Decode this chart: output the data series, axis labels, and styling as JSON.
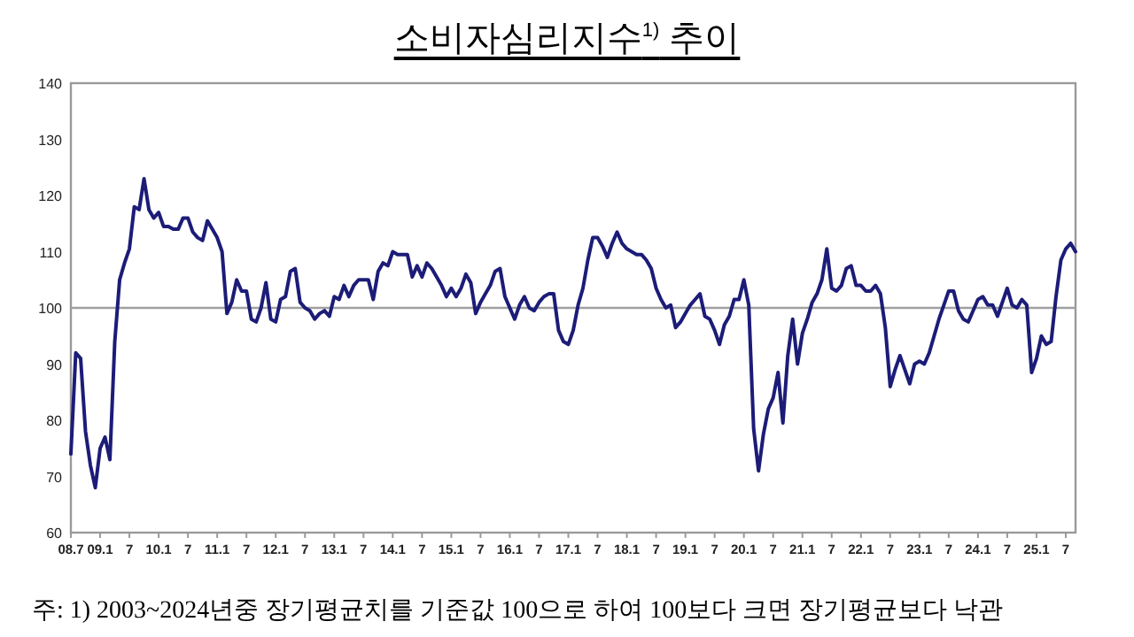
{
  "chart_data": {
    "type": "line",
    "title": "소비자심리지수$^{1)}$ 추이",
    "x": [
      "2008-07",
      "2008-08",
      "2008-09",
      "2008-10",
      "2008-11",
      "2008-12",
      "2009-01",
      "2009-02",
      "2009-03",
      "2009-04",
      "2009-05",
      "2009-06",
      "2009-07",
      "2009-08",
      "2009-09",
      "2009-10",
      "2009-11",
      "2009-12",
      "2010-01",
      "2010-02",
      "2010-03",
      "2010-04",
      "2010-05",
      "2010-06",
      "2010-07",
      "2010-08",
      "2010-09",
      "2010-10",
      "2010-11",
      "2010-12",
      "2011-01",
      "2011-02",
      "2011-03",
      "2011-04",
      "2011-05",
      "2011-06",
      "2011-07",
      "2011-08",
      "2011-09",
      "2011-10",
      "2011-11",
      "2011-12",
      "2012-01",
      "2012-02",
      "2012-03",
      "2012-04",
      "2012-05",
      "2012-06",
      "2012-07",
      "2012-08",
      "2012-09",
      "2012-10",
      "2012-11",
      "2012-12",
      "2013-01",
      "2013-02",
      "2013-03",
      "2013-04",
      "2013-05",
      "2013-06",
      "2013-07",
      "2013-08",
      "2013-09",
      "2013-10",
      "2013-11",
      "2013-12",
      "2014-01",
      "2014-02",
      "2014-03",
      "2014-04",
      "2014-05",
      "2014-06",
      "2014-07",
      "2014-08",
      "2014-09",
      "2014-10",
      "2014-11",
      "2014-12",
      "2015-01",
      "2015-02",
      "2015-03",
      "2015-04",
      "2015-05",
      "2015-06",
      "2015-07",
      "2015-08",
      "2015-09",
      "2015-10",
      "2015-11",
      "2015-12",
      "2016-01",
      "2016-02",
      "2016-03",
      "2016-04",
      "2016-05",
      "2016-06",
      "2016-07",
      "2016-08",
      "2016-09",
      "2016-10",
      "2016-11",
      "2016-12",
      "2017-01",
      "2017-02",
      "2017-03",
      "2017-04",
      "2017-05",
      "2017-06",
      "2017-07",
      "2017-08",
      "2017-09",
      "2017-10",
      "2017-11",
      "2017-12",
      "2018-01",
      "2018-02",
      "2018-03",
      "2018-04",
      "2018-05",
      "2018-06",
      "2018-07",
      "2018-08",
      "2018-09",
      "2018-10",
      "2018-11",
      "2018-12",
      "2019-01",
      "2019-02",
      "2019-03",
      "2019-04",
      "2019-05",
      "2019-06",
      "2019-07",
      "2019-08",
      "2019-09",
      "2019-10",
      "2019-11",
      "2019-12",
      "2020-01",
      "2020-02",
      "2020-03",
      "2020-04",
      "2020-05",
      "2020-06",
      "2020-07",
      "2020-08",
      "2020-09",
      "2020-10",
      "2020-11",
      "2020-12",
      "2021-01",
      "2021-02",
      "2021-03",
      "2021-04",
      "2021-05",
      "2021-06",
      "2021-07",
      "2021-08",
      "2021-09",
      "2021-10",
      "2021-11",
      "2021-12",
      "2022-01",
      "2022-02",
      "2022-03",
      "2022-04",
      "2022-05",
      "2022-06",
      "2022-07",
      "2022-08",
      "2022-09",
      "2022-10",
      "2022-11",
      "2022-12",
      "2023-01",
      "2023-02",
      "2023-03",
      "2023-04",
      "2023-05",
      "2023-06",
      "2023-07",
      "2023-08",
      "2023-09",
      "2023-10",
      "2023-11",
      "2023-12",
      "2024-01",
      "2024-02",
      "2024-03",
      "2024-04",
      "2024-05",
      "2024-06",
      "2024-07",
      "2024-08",
      "2024-09",
      "2024-10",
      "2024-11",
      "2024-12",
      "2025-01",
      "2025-02",
      "2025-03",
      "2025-04",
      "2025-05",
      "2025-06",
      "2025-07",
      "2025-08",
      "2025-09"
    ],
    "series": [
      {
        "color": "#1c1c78",
        "values": [
          74,
          92,
          91,
          78,
          72,
          68,
          75,
          77,
          73,
          94,
          105,
          108,
          110.5,
          118,
          117.5,
          123,
          117.5,
          116,
          117,
          114.5,
          114.5,
          114,
          114,
          116,
          116,
          113.5,
          112.5,
          112,
          115.5,
          114,
          112.5,
          110,
          99,
          101,
          105,
          103,
          103,
          98,
          97.5,
          100,
          104.5,
          98,
          97.5,
          101.5,
          102,
          106.5,
          107,
          101,
          100,
          99.5,
          98,
          99,
          99.5,
          98.5,
          102,
          101.5,
          104,
          102,
          104,
          105,
          105,
          105,
          101.5,
          106.5,
          108,
          107.5,
          110,
          109.5,
          109.5,
          109.5,
          105.5,
          107.5,
          105.5,
          108,
          107,
          105.5,
          104,
          102,
          103.5,
          102,
          103.5,
          106,
          104.5,
          99,
          101,
          102.5,
          104,
          106.5,
          107,
          102,
          100,
          98,
          100.5,
          102,
          100,
          99.5,
          101,
          102,
          102.5,
          102.5,
          96,
          94,
          93.5,
          96,
          100.5,
          103.5,
          108.5,
          112.5,
          112.5,
          111,
          109,
          111.5,
          113.5,
          111.5,
          110.5,
          110,
          109.5,
          109.5,
          108.5,
          107,
          103.5,
          101.5,
          100,
          100.5,
          96.5,
          97.5,
          99,
          100.5,
          101.5,
          102.5,
          98.5,
          98,
          96,
          93.5,
          97,
          98.5,
          101.5,
          101.5,
          105,
          100.5,
          78.5,
          71,
          77.5,
          82,
          84,
          88.5,
          79.5,
          91.5,
          98,
          90,
          95.5,
          98,
          101,
          102.5,
          105,
          110.5,
          103.5,
          103,
          104,
          107,
          107.5,
          104,
          104,
          103,
          103,
          104,
          102.5,
          96.5,
          86,
          89,
          91.5,
          89,
          86.5,
          90,
          90.5,
          90,
          92,
          95,
          98,
          100.5,
          103,
          103,
          99.5,
          98,
          97.5,
          99.5,
          101.5,
          102,
          100.5,
          100.5,
          98.5,
          101,
          103.5,
          100.5,
          100,
          101.5,
          100.5,
          88.5,
          91,
          95,
          93.5,
          94,
          102,
          108.5,
          110.5,
          111.5,
          110
        ]
      }
    ],
    "xlim": [
      "2008-07",
      "2025-09"
    ],
    "ylim": [
      60,
      140
    ],
    "yticks": [
      60,
      70,
      80,
      90,
      100,
      110,
      120,
      130,
      140
    ],
    "xticks": [
      {
        "value": "2008-07",
        "label": "08.7"
      },
      {
        "value": "2009-01",
        "label": "09.1"
      },
      {
        "value": "2009-07",
        "label": "7"
      },
      {
        "value": "2010-01",
        "label": "10.1"
      },
      {
        "value": "2010-07",
        "label": "7"
      },
      {
        "value": "2011-01",
        "label": "11.1"
      },
      {
        "value": "2011-07",
        "label": "7"
      },
      {
        "value": "2012-01",
        "label": "12.1"
      },
      {
        "value": "2012-07",
        "label": "7"
      },
      {
        "value": "2013-01",
        "label": "13.1"
      },
      {
        "value": "2013-07",
        "label": "7"
      },
      {
        "value": "2014-01",
        "label": "14.1"
      },
      {
        "value": "2014-07",
        "label": "7"
      },
      {
        "value": "2015-01",
        "label": "15.1"
      },
      {
        "value": "2015-07",
        "label": "7"
      },
      {
        "value": "2016-01",
        "label": "16.1"
      },
      {
        "value": "2016-07",
        "label": "7"
      },
      {
        "value": "2017-01",
        "label": "17.1"
      },
      {
        "value": "2017-07",
        "label": "7"
      },
      {
        "value": "2018-01",
        "label": "18.1"
      },
      {
        "value": "2018-07",
        "label": "7"
      },
      {
        "value": "2019-01",
        "label": "19.1"
      },
      {
        "value": "2019-07",
        "label": "7"
      },
      {
        "value": "2020-01",
        "label": "20.1"
      },
      {
        "value": "2020-07",
        "label": "7"
      },
      {
        "value": "2021-01",
        "label": "21.1"
      },
      {
        "value": "2021-07",
        "label": "7"
      },
      {
        "value": "2022-01",
        "label": "22.1"
      },
      {
        "value": "2022-07",
        "label": "7"
      },
      {
        "value": "2023-01",
        "label": "23.1"
      },
      {
        "value": "2023-07",
        "label": "7"
      },
      {
        "value": "2024-01",
        "label": "24.1"
      },
      {
        "value": "2024-07",
        "label": "7"
      },
      {
        "value": "2025-01",
        "label": "25.1"
      },
      {
        "value": "2025-07",
        "label": "7"
      }
    ],
    "ref_lines": [
      {
        "axis": "y",
        "value": 100,
        "color": "#a0a0a0"
      }
    ],
    "grid": false,
    "annotations": [
      "주: 1) 2003~2024년중 장기평균치를 기준값 100으로 하여 100보다 크면 장기평균보다 낙관"
    ]
  }
}
